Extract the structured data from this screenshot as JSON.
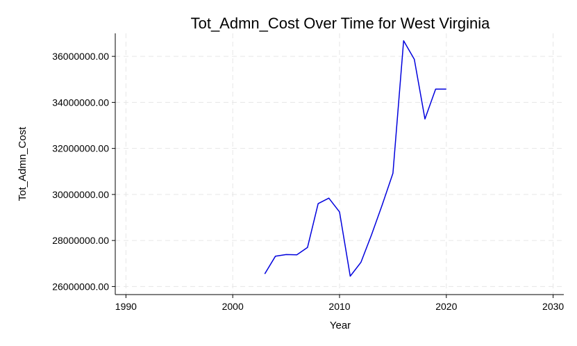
{
  "chart_data": {
    "type": "line",
    "title": "Tot_Admn_Cost Over Time for West Virginia",
    "xlabel": "Year",
    "ylabel": "Tot_Admn_Cost",
    "xlim": [
      1989,
      2031
    ],
    "ylim": [
      25650000,
      37000000
    ],
    "xticks": [
      1990,
      2000,
      2010,
      2020,
      2030
    ],
    "xtick_labels": [
      "1990",
      "2000",
      "2010",
      "2020",
      "2030"
    ],
    "yticks": [
      26000000,
      28000000,
      30000000,
      32000000,
      34000000,
      36000000
    ],
    "ytick_labels": [
      "26000000.00",
      "28000000.00",
      "30000000.00",
      "32000000.00",
      "34000000.00",
      "36000000.00"
    ],
    "grid": true,
    "series": [
      {
        "color": "#0000dd",
        "x": [
          2003,
          2004,
          2005,
          2006,
          2007,
          2008,
          2009,
          2010,
          2011,
          2012,
          2013,
          2014,
          2015,
          2016,
          2017,
          2018,
          2019,
          2020
        ],
        "y": [
          26550000,
          27320000,
          27390000,
          27380000,
          27700000,
          29600000,
          29840000,
          29240000,
          26450000,
          27050000,
          28250000,
          29550000,
          30920000,
          36680000,
          35870000,
          33280000,
          34580000,
          34580000
        ]
      }
    ]
  }
}
